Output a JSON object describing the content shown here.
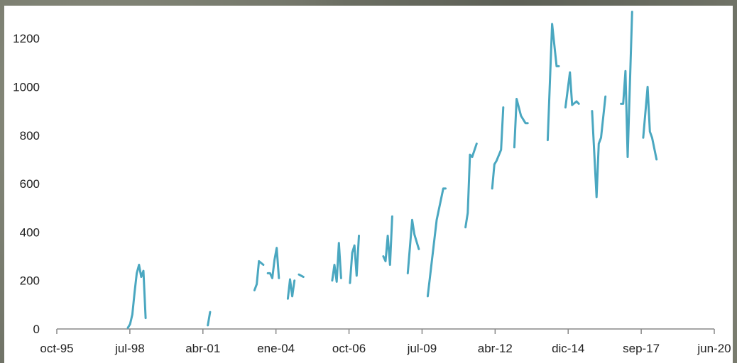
{
  "chart_data": {
    "type": "line",
    "title": "",
    "xlabel": "",
    "ylabel": "",
    "x_ticks": [
      "oct-95",
      "jul-98",
      "abr-01",
      "ene-04",
      "oct-06",
      "jul-09",
      "abr-12",
      "dic-14",
      "sep-17",
      "jun-20"
    ],
    "y_ticks": [
      "0",
      "200",
      "400",
      "600",
      "800",
      "1000",
      "1200"
    ],
    "ylim": [
      0,
      1300
    ],
    "xlim": [
      "1995-10",
      "2020-06"
    ],
    "grid": false,
    "series": [
      {
        "color": "#4aa7c0",
        "segments": [
          [
            [
              "1998-06",
              5
            ],
            [
              "1998-07",
              20
            ],
            [
              "1998-08",
              60
            ],
            [
              "1998-09",
              150
            ],
            [
              "1998-10",
              230
            ],
            [
              "1998-11",
              265
            ],
            [
              "1998-12",
              215
            ],
            [
              "1999-01",
              240
            ],
            [
              "1999-02",
              45
            ]
          ],
          [
            [
              "2001-06",
              15
            ],
            [
              "2001-07",
              70
            ]
          ],
          [
            [
              "2003-03",
              160
            ],
            [
              "2003-04",
              185
            ],
            [
              "2003-05",
              280
            ],
            [
              "2003-07",
              265
            ]
          ],
          [
            [
              "2003-09",
              230
            ],
            [
              "2003-10",
              230
            ],
            [
              "2003-11",
              210
            ],
            [
              "2003-12",
              285
            ],
            [
              "2004-01",
              335
            ],
            [
              "2004-02",
              210
            ]
          ],
          [
            [
              "2004-06",
              125
            ],
            [
              "2004-07",
              205
            ],
            [
              "2004-08",
              135
            ],
            [
              "2004-09",
              200
            ]
          ],
          [
            [
              "2004-11",
              225
            ],
            [
              "2005-01",
              215
            ]
          ],
          [
            [
              "2006-02",
              200
            ],
            [
              "2006-03",
              265
            ],
            [
              "2006-04",
              195
            ],
            [
              "2006-05",
              355
            ],
            [
              "2006-06",
              210
            ]
          ],
          [
            [
              "2006-10",
              190
            ],
            [
              "2006-11",
              315
            ],
            [
              "2006-12",
              345
            ],
            [
              "2007-01",
              220
            ],
            [
              "2007-02",
              385
            ]
          ],
          [
            [
              "2008-01",
              300
            ],
            [
              "2008-02",
              280
            ],
            [
              "2008-03",
              385
            ],
            [
              "2008-04",
              265
            ],
            [
              "2008-05",
              465
            ]
          ],
          [
            [
              "2008-12",
              230
            ],
            [
              "2009-01",
              340
            ],
            [
              "2009-02",
              450
            ],
            [
              "2009-03",
              390
            ],
            [
              "2009-05",
              330
            ]
          ],
          [
            [
              "2009-09",
              135
            ],
            [
              "2010-01",
              450
            ],
            [
              "2010-04",
              580
            ],
            [
              "2010-05",
              580
            ]
          ],
          [
            [
              "2011-02",
              420
            ],
            [
              "2011-03",
              480
            ],
            [
              "2011-04",
              720
            ],
            [
              "2011-05",
              710
            ],
            [
              "2011-07",
              765
            ]
          ],
          [
            [
              "2012-02",
              580
            ],
            [
              "2012-03",
              680
            ],
            [
              "2012-04",
              695
            ],
            [
              "2012-06",
              740
            ],
            [
              "2012-07",
              915
            ]
          ],
          [
            [
              "2012-12",
              750
            ],
            [
              "2013-01",
              950
            ],
            [
              "2013-03",
              880
            ],
            [
              "2013-05",
              850
            ],
            [
              "2013-06",
              850
            ]
          ],
          [
            [
              "2014-03",
              780
            ],
            [
              "2014-05",
              1260
            ],
            [
              "2014-07",
              1085
            ],
            [
              "2014-08",
              1085
            ]
          ],
          [
            [
              "2014-11",
              915
            ],
            [
              "2015-01",
              1060
            ],
            [
              "2015-02",
              925
            ],
            [
              "2015-04",
              940
            ],
            [
              "2015-05",
              930
            ]
          ],
          [
            [
              "2015-11",
              900
            ],
            [
              "2016-01",
              545
            ],
            [
              "2016-02",
              765
            ],
            [
              "2016-03",
              790
            ],
            [
              "2016-05",
              960
            ]
          ],
          [
            [
              "2016-12",
              930
            ],
            [
              "2017-01",
              930
            ],
            [
              "2017-02",
              1065
            ],
            [
              "2017-03",
              710
            ],
            [
              "2017-05",
              1310
            ]
          ],
          [
            [
              "2017-10",
              790
            ],
            [
              "2017-12",
              1000
            ],
            [
              "2018-01",
              815
            ],
            [
              "2018-02",
              790
            ],
            [
              "2018-04",
              700
            ]
          ]
        ]
      }
    ]
  }
}
